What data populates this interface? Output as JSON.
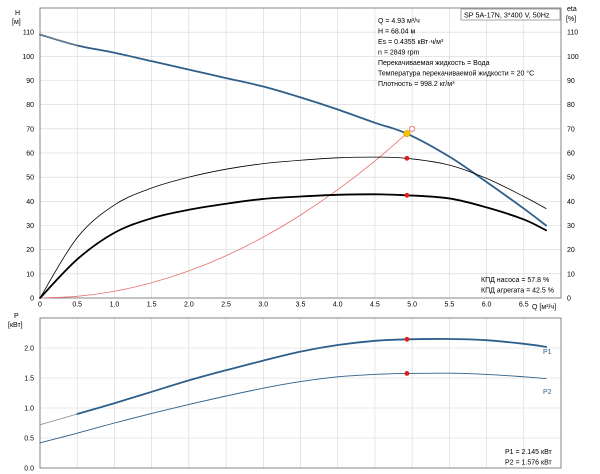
{
  "chart_data": [
    {
      "type": "line",
      "title": "SP 5A-17N, 3*400 V, 50Hz",
      "xlabel": "Q [м³/ч]",
      "ylabel_left": "H",
      "ylabel_left_unit": "[м]",
      "ylabel_right": "eta",
      "ylabel_right_unit": "[%]",
      "xlim": [
        0,
        7
      ],
      "ylim": [
        0,
        120
      ],
      "x_ticks": [
        0,
        0.5,
        1.0,
        1.5,
        2.0,
        2.5,
        3.0,
        3.5,
        4.0,
        4.5,
        5.0,
        5.5,
        6.0,
        6.5
      ],
      "x_tick_labels": [
        "0",
        "0.5",
        "1.0",
        "1.5",
        "2.0",
        "2.5",
        "3.0",
        "3.5",
        "4.0",
        "4.5",
        "5.0",
        "5.5",
        "6.0",
        "6.5"
      ],
      "y_ticks": [
        0,
        10,
        20,
        30,
        40,
        50,
        60,
        70,
        80,
        90,
        100,
        110
      ],
      "grid": true,
      "info_lines": [
        "Q = 4.93 м³/ч",
        "H = 68.04 м",
        "Es = 0.4355 кВт·ч/м³",
        "n = 2849 rpm",
        "Перекачиваемая жидкость = Вода",
        "Температура перекачиваемой жидкости = 20 °C",
        "Плотность = 998.2 кг/м³"
      ],
      "efficiency_labels": [
        "КПД насоса = 57.8 %",
        "КПД агрегата = 42.5 %"
      ],
      "series": [
        {
          "role": "pump-curve-h",
          "color": "#2e5f8a",
          "x": [
            0,
            0.5,
            1.0,
            1.5,
            2.0,
            2.5,
            3.0,
            3.5,
            4.0,
            4.5,
            4.93,
            5.5,
            6.0,
            6.5,
            6.8
          ],
          "values": [
            109,
            104.5,
            101.5,
            98,
            94.5,
            91,
            87.5,
            83,
            78,
            72.5,
            68,
            58.5,
            48,
            37,
            30
          ]
        },
        {
          "role": "pump-curve-h-extension",
          "color": "#888888",
          "x": [
            0,
            0.5
          ],
          "values": [
            109,
            104.5
          ]
        },
        {
          "role": "system-curve",
          "color": "#e87070",
          "x": [
            0,
            0.5,
            1.0,
            1.5,
            2.0,
            2.5,
            3.0,
            3.5,
            4.0,
            4.5,
            5.0
          ],
          "values": [
            0,
            0.7,
            2.8,
            6.3,
            11.2,
            17.5,
            25.2,
            34.3,
            44.8,
            56.7,
            70
          ]
        },
        {
          "role": "pump-efficiency",
          "color": "#000000",
          "x": [
            0,
            0.5,
            1.0,
            1.5,
            2.0,
            2.5,
            3.0,
            3.5,
            4.0,
            4.5,
            4.93,
            5.5,
            6.0,
            6.5,
            6.8
          ],
          "values": [
            0,
            25,
            38.5,
            45.5,
            50,
            53.3,
            55.6,
            57,
            58,
            58.3,
            57.8,
            55,
            49.5,
            42,
            37
          ]
        },
        {
          "role": "unit-efficiency",
          "color": "#000000",
          "x": [
            0,
            0.5,
            1.0,
            1.5,
            2.0,
            2.5,
            3.0,
            3.5,
            4.0,
            4.5,
            4.93,
            5.5,
            6.0,
            6.5,
            6.8
          ],
          "values": [
            0,
            16,
            27,
            33,
            36.5,
            39,
            41,
            42,
            42.7,
            42.9,
            42.5,
            41.2,
            37.5,
            32.5,
            28
          ]
        }
      ],
      "markers": [
        {
          "x": 4.93,
          "y": 68.04,
          "color": "#f5c400",
          "shape": "duty-point"
        },
        {
          "x": 5.0,
          "y": 70,
          "color": "#e87070",
          "shape": "open-circle"
        },
        {
          "x": 4.93,
          "y": 57.8,
          "color": "#e02020",
          "shape": "dot"
        },
        {
          "x": 4.93,
          "y": 42.5,
          "color": "#e02020",
          "shape": "dot"
        }
      ]
    },
    {
      "type": "line",
      "xlabel": "",
      "ylabel": "P",
      "ylabel_unit": "[кВт]",
      "xlim": [
        0,
        7
      ],
      "ylim": [
        0,
        2.5
      ],
      "y_ticks": [
        0,
        0.5,
        1.0,
        1.5,
        2.0
      ],
      "y_tick_labels": [
        "0.0",
        "0.5",
        "1.0",
        "1.5",
        "2.0"
      ],
      "grid": true,
      "power_labels": [
        "P1 = 2.145 кВт",
        "P2 = 1.576 кВт"
      ],
      "series": [
        {
          "name": "P1",
          "color": "#2e5f8a",
          "x": [
            0.5,
            1.0,
            1.5,
            2.0,
            2.5,
            3.0,
            3.5,
            4.0,
            4.5,
            4.93,
            5.5,
            6.0,
            6.5,
            6.8
          ],
          "values": [
            0.9,
            1.08,
            1.27,
            1.46,
            1.63,
            1.79,
            1.94,
            2.05,
            2.12,
            2.145,
            2.15,
            2.13,
            2.07,
            2.02
          ]
        },
        {
          "name": "P1-extension",
          "color": "#888888",
          "x": [
            0,
            0.5
          ],
          "values": [
            0.72,
            0.9
          ]
        },
        {
          "name": "P2",
          "color": "#2e5f8a",
          "x": [
            0,
            0.5,
            1.0,
            1.5,
            2.0,
            2.5,
            3.0,
            3.5,
            4.0,
            4.5,
            4.93,
            5.5,
            6.0,
            6.5,
            6.8
          ],
          "values": [
            0.42,
            0.58,
            0.75,
            0.91,
            1.06,
            1.2,
            1.33,
            1.44,
            1.52,
            1.56,
            1.576,
            1.58,
            1.56,
            1.52,
            1.49
          ]
        }
      ],
      "markers": [
        {
          "x": 4.93,
          "y": 2.145,
          "color": "#e02020",
          "shape": "dot"
        },
        {
          "x": 4.93,
          "y": 1.576,
          "color": "#e02020",
          "shape": "dot"
        }
      ]
    }
  ]
}
